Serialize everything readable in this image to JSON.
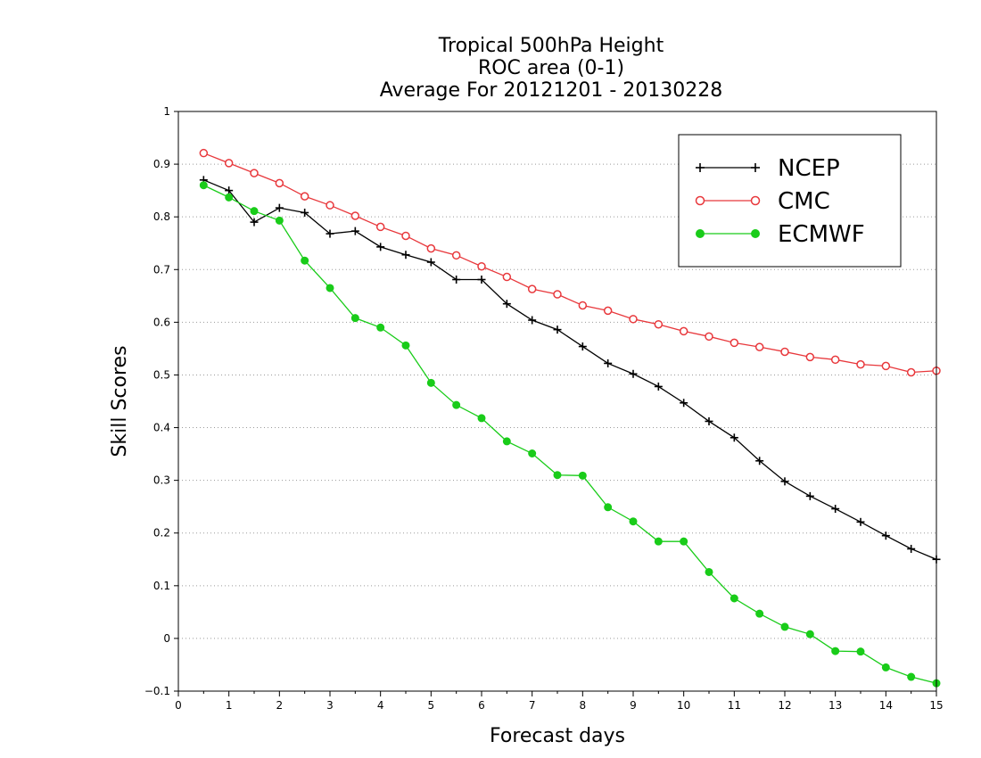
{
  "chart_data": {
    "type": "line",
    "title": [
      "Tropical 500hPa Height",
      "ROC area (0-1)",
      "Average For 20121201 - 20130228"
    ],
    "xlabel": "Forecast days",
    "ylabel": "Skill Scores",
    "xlim": [
      0,
      15
    ],
    "ylim": [
      -0.1,
      1
    ],
    "xticks": [
      0,
      1,
      2,
      3,
      4,
      5,
      6,
      7,
      8,
      9,
      10,
      11,
      12,
      13,
      14,
      15
    ],
    "xtick_labels": [
      "0",
      "1",
      "2",
      "3",
      "4",
      "5",
      "6",
      "7",
      "8",
      "9",
      "10",
      "11",
      "12",
      "13",
      "14",
      "15"
    ],
    "yticks": [
      -0.1,
      0,
      0.1,
      0.2,
      0.3,
      0.4,
      0.5,
      0.6,
      0.7,
      0.8,
      0.9,
      1
    ],
    "ytick_labels": [
      "−0.1",
      "0",
      "0.1",
      "0.2",
      "0.3",
      "0.4",
      "0.5",
      "0.6",
      "0.7",
      "0.8",
      "0.9",
      "1"
    ],
    "grid": "horizontal dotted",
    "legend_position": "top-right",
    "x": [
      0.5,
      1,
      1.5,
      2,
      2.5,
      3,
      3.5,
      4,
      4.5,
      5,
      5.5,
      6,
      6.5,
      7,
      7.5,
      8,
      8.5,
      9,
      9.5,
      10,
      10.5,
      11,
      11.5,
      12,
      12.5,
      13,
      13.5,
      14,
      14.5,
      15
    ],
    "series": [
      {
        "name": "NCEP",
        "color": "#000000",
        "marker": "plus",
        "values": [
          0.87,
          0.85,
          0.79,
          0.817,
          0.808,
          0.768,
          0.773,
          0.743,
          0.728,
          0.714,
          0.681,
          0.681,
          0.635,
          0.604,
          0.586,
          0.554,
          0.522,
          0.502,
          0.478,
          0.447,
          0.412,
          0.381,
          0.337,
          0.298,
          0.27,
          0.246,
          0.221,
          0.195,
          0.17,
          0.15
        ]
      },
      {
        "name": "CMC",
        "color": "#e8383c",
        "marker": "open-circle",
        "values": [
          0.921,
          0.902,
          0.883,
          0.864,
          0.839,
          0.822,
          0.802,
          0.781,
          0.764,
          0.74,
          0.727,
          0.706,
          0.686,
          0.663,
          0.653,
          0.632,
          0.622,
          0.606,
          0.596,
          0.583,
          0.573,
          0.561,
          0.553,
          0.544,
          0.534,
          0.529,
          0.52,
          0.517,
          0.505,
          0.508
        ]
      },
      {
        "name": "ECMWF",
        "color": "#19cc19",
        "marker": "filled-circle",
        "values": [
          0.86,
          0.837,
          0.811,
          0.793,
          0.717,
          0.665,
          0.608,
          0.59,
          0.556,
          0.485,
          0.443,
          0.418,
          0.374,
          0.351,
          0.31,
          0.309,
          0.249,
          0.222,
          0.184,
          0.184,
          0.126,
          0.076,
          0.047,
          0.022,
          0.008,
          -0.024,
          -0.025,
          -0.055,
          -0.073,
          -0.085
        ]
      }
    ]
  }
}
